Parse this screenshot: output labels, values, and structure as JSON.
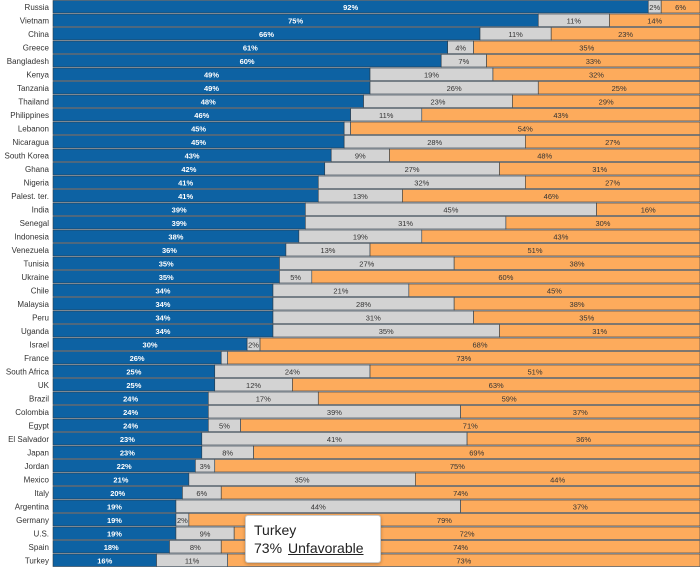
{
  "chart_data": {
    "type": "bar",
    "orientation": "horizontal",
    "stacked": true,
    "xlim": [
      0,
      100
    ],
    "categories": [
      "Russia",
      "Vietnam",
      "China",
      "Greece",
      "Bangladesh",
      "Kenya",
      "Tanzania",
      "Thailand",
      "Philippines",
      "Lebanon",
      "Nicaragua",
      "South Korea",
      "Ghana",
      "Nigeria",
      "Palest. ter.",
      "India",
      "Senegal",
      "Indonesia",
      "Venezuela",
      "Tunisia",
      "Ukraine",
      "Chile",
      "Malaysia",
      "Peru",
      "Uganda",
      "Israel",
      "France",
      "South Africa",
      "UK",
      "Brazil",
      "Colombia",
      "Egypt",
      "El Salvador",
      "Japan",
      "Jordan",
      "Mexico",
      "Italy",
      "Argentina",
      "Germany",
      "U.S.",
      "Spain",
      "Turkey"
    ],
    "series": [
      {
        "color": "#0d62a3",
        "values": [
          92,
          75,
          66,
          61,
          60,
          49,
          49,
          48,
          46,
          45,
          45,
          43,
          42,
          41,
          41,
          39,
          39,
          38,
          36,
          35,
          35,
          34,
          34,
          34,
          34,
          30,
          26,
          25,
          25,
          24,
          24,
          24,
          23,
          23,
          22,
          21,
          20,
          19,
          19,
          19,
          18,
          16
        ]
      },
      {
        "color": "#d3d3d3",
        "values": [
          2,
          11,
          11,
          4,
          7,
          19,
          26,
          23,
          11,
          1,
          28,
          9,
          27,
          32,
          13,
          45,
          31,
          19,
          13,
          27,
          5,
          21,
          28,
          31,
          35,
          2,
          1,
          24,
          12,
          17,
          39,
          5,
          41,
          8,
          3,
          35,
          6,
          44,
          2,
          9,
          8,
          11
        ]
      },
      {
        "color": "#fdab5c",
        "name": "Unfavorable",
        "values": [
          6,
          14,
          23,
          35,
          33,
          32,
          25,
          29,
          43,
          54,
          27,
          48,
          31,
          27,
          46,
          16,
          30,
          43,
          51,
          38,
          60,
          45,
          38,
          35,
          31,
          68,
          73,
          51,
          63,
          59,
          37,
          71,
          36,
          69,
          75,
          44,
          74,
          37,
          79,
          72,
          74,
          73
        ]
      }
    ],
    "tooltip": {
      "country": "Turkey",
      "value": "73%",
      "series": "Unfavorable"
    }
  }
}
